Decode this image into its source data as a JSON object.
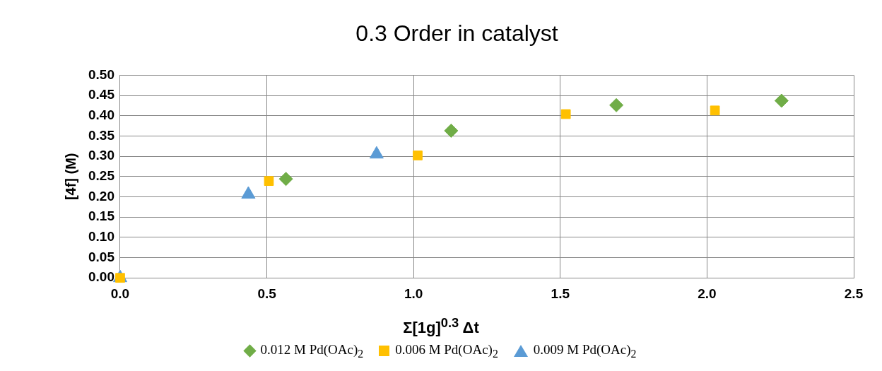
{
  "chart_data": {
    "type": "scatter",
    "title": "0.3 Order in catalyst",
    "xlabel": "Σ[1g]$^{0.3}$ Δt",
    "ylabel": "[4f] (M)",
    "series": [
      {
        "name": "0.012 M Pd(OAc)$_{2}$",
        "color": "#70ad47",
        "marker": "diamond",
        "x": [
          0.565,
          1.128,
          1.691,
          2.254
        ],
        "values": [
          0.244,
          0.363,
          0.426,
          0.437
        ]
      },
      {
        "name": "0.006 M Pd(OAc)$_{2}$",
        "color": "#ffc000",
        "marker": "square",
        "x": [
          0,
          0.507,
          1.014,
          1.519,
          2.027
        ],
        "values": [
          0,
          0.239,
          0.302,
          0.404,
          0.413
        ]
      },
      {
        "name": "0.009 M Pd(OAc)$_{2}$",
        "color": "#5b9bd5",
        "marker": "triangle",
        "x": [
          0,
          0.437,
          0.874
        ],
        "values": [
          0,
          0.206,
          0.305
        ]
      }
    ],
    "xlim": [
      0,
      2.5
    ],
    "xticks": [
      {
        "value": 0,
        "label": "0.0"
      },
      {
        "value": 0.5,
        "label": "0.5"
      },
      {
        "value": 1,
        "label": "1.0"
      },
      {
        "value": 1.5,
        "label": "1.5"
      },
      {
        "value": 2,
        "label": "2.0"
      },
      {
        "value": 2.5,
        "label": "2.5"
      }
    ],
    "ylim": [
      0,
      0.5
    ],
    "yticks": [
      {
        "value": 0,
        "label": "0.00"
      },
      {
        "value": 0.05,
        "label": "0.05"
      },
      {
        "value": 0.1,
        "label": "0.10"
      },
      {
        "value": 0.15,
        "label": "0.15"
      },
      {
        "value": 0.2,
        "label": "0.20"
      },
      {
        "value": 0.25,
        "label": "0.25"
      },
      {
        "value": 0.3,
        "label": "0.30"
      },
      {
        "value": 0.35,
        "label": "0.35"
      },
      {
        "value": 0.4,
        "label": "0.40"
      },
      {
        "value": 0.45,
        "label": "0.45"
      },
      {
        "value": 0.5,
        "label": "0.50"
      }
    ],
    "grid": true,
    "legend": "bottom"
  }
}
